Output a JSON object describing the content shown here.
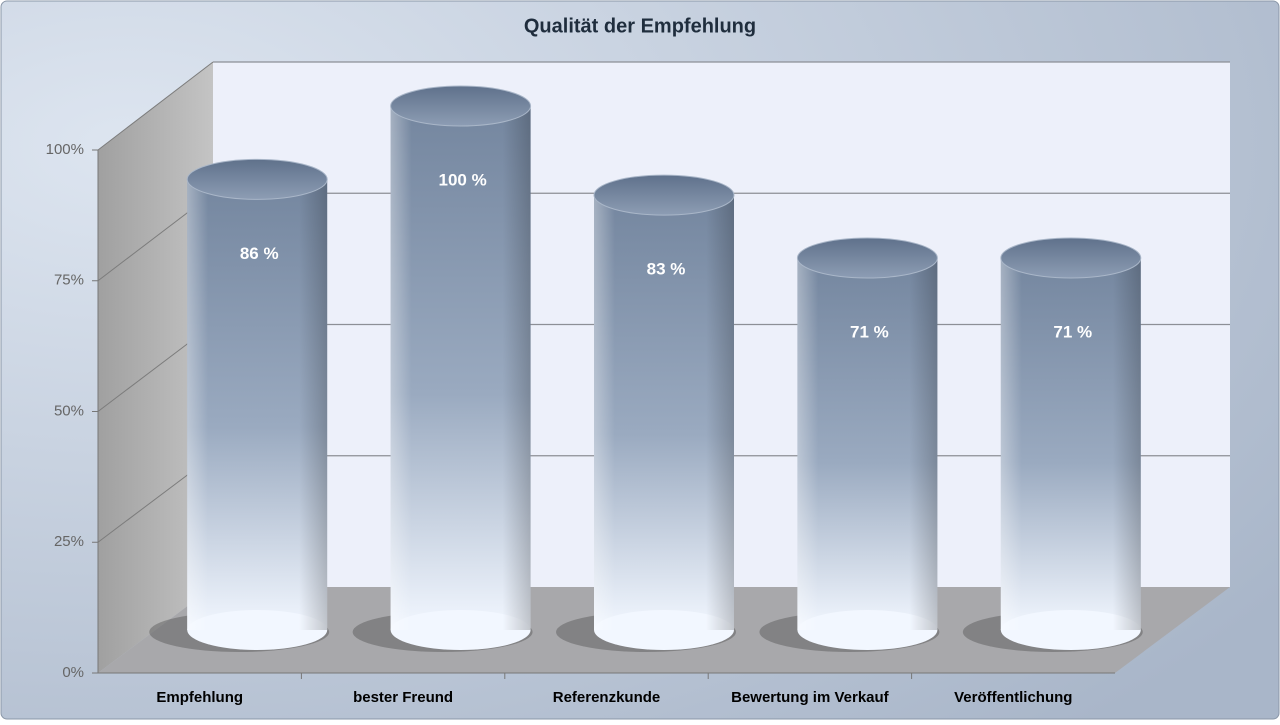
{
  "chart_data": {
    "type": "bar3d",
    "title": "Qualität der Empfehlung",
    "categories": [
      "Empfehlung",
      "bester Freund",
      "Referenzkunde",
      "Bewertung im Verkauf",
      "Veröffentlichung"
    ],
    "values": [
      86,
      100,
      83,
      71,
      71
    ],
    "value_labels": [
      "86 %",
      "100 %",
      "83 %",
      "71 %",
      "71 %"
    ],
    "color": "#8a9bb4",
    "ylim": [
      0,
      100
    ],
    "yticks": [
      {
        "value": 0,
        "label": "0%"
      },
      {
        "value": 25,
        "label": "25%"
      },
      {
        "value": 50,
        "label": "50%"
      },
      {
        "value": 75,
        "label": "75%"
      },
      {
        "value": 100,
        "label": "100%"
      }
    ],
    "grid": true
  }
}
